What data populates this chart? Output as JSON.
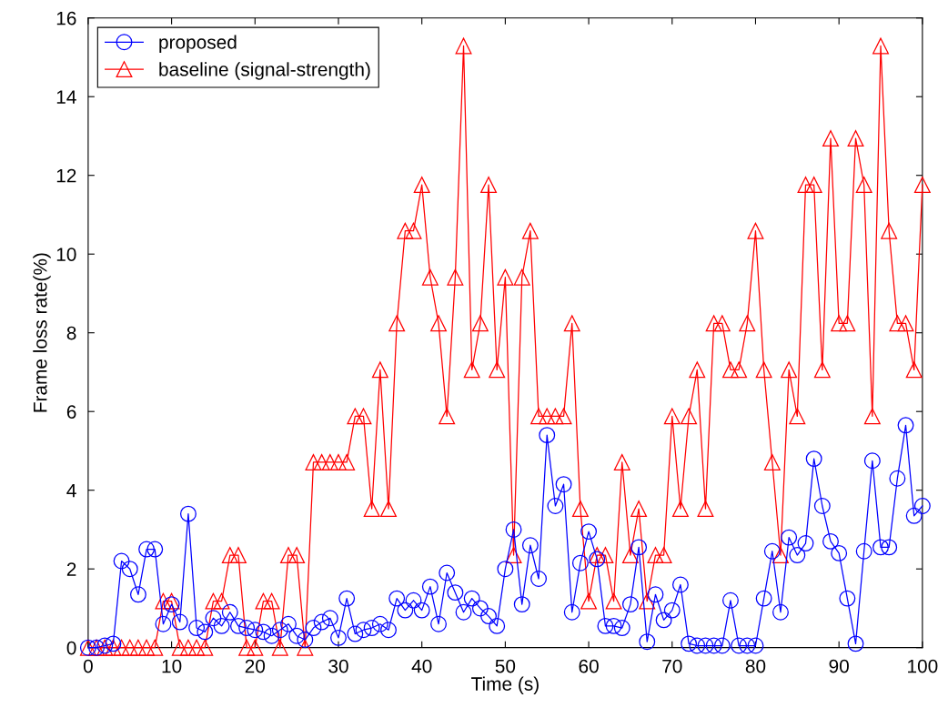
{
  "chart_data": {
    "type": "line",
    "xlabel": "Time (s)",
    "ylabel": "Frame loss rate(%)",
    "x": [
      0,
      1,
      2,
      3,
      4,
      5,
      6,
      7,
      8,
      9,
      10,
      11,
      12,
      13,
      14,
      15,
      16,
      17,
      18,
      19,
      20,
      21,
      22,
      23,
      24,
      25,
      26,
      27,
      28,
      29,
      30,
      31,
      32,
      33,
      34,
      35,
      36,
      37,
      38,
      39,
      40,
      41,
      42,
      43,
      44,
      45,
      46,
      47,
      48,
      49,
      50,
      51,
      52,
      53,
      54,
      55,
      56,
      57,
      58,
      59,
      60,
      61,
      62,
      63,
      64,
      65,
      66,
      67,
      68,
      69,
      70,
      71,
      72,
      73,
      74,
      75,
      76,
      77,
      78,
      79,
      80,
      81,
      82,
      83,
      84,
      85,
      86,
      87,
      88,
      89,
      90,
      91,
      92,
      93,
      94,
      95,
      96,
      97,
      98,
      99,
      100
    ],
    "xlim": [
      0,
      100
    ],
    "xticks": [
      0,
      10,
      20,
      30,
      40,
      50,
      60,
      70,
      80,
      90,
      100
    ],
    "ylim": [
      0,
      16
    ],
    "yticks": [
      0,
      2,
      4,
      6,
      8,
      10,
      12,
      14,
      16
    ],
    "grid": false,
    "legend": "top left",
    "line_style": "solid",
    "series": [
      {
        "name": "proposed",
        "color": "#0000ff",
        "marker": "circle",
        "values": [
          0,
          0,
          0.05,
          0.1,
          2.2,
          2.0,
          1.35,
          2.5,
          2.5,
          0.6,
          1.1,
          0.65,
          3.4,
          0.5,
          0.4,
          0.75,
          0.55,
          0.9,
          0.55,
          0.5,
          0.45,
          0.4,
          0.3,
          0.45,
          0.6,
          0.3,
          0.2,
          0.5,
          0.65,
          0.75,
          0.25,
          1.25,
          0.35,
          0.45,
          0.5,
          0.6,
          0.45,
          1.25,
          0.95,
          1.2,
          0.95,
          1.55,
          0.6,
          1.9,
          1.4,
          0.9,
          1.25,
          1.0,
          0.8,
          0.55,
          2.0,
          3.0,
          1.1,
          2.6,
          1.75,
          5.4,
          3.6,
          4.15,
          0.9,
          2.15,
          2.95,
          2.25,
          0.55,
          0.55,
          0.5,
          1.1,
          2.55,
          0.15,
          1.35,
          0.7,
          0.95,
          1.6,
          0.1,
          0.05,
          0.05,
          0.05,
          0.05,
          1.2,
          0.05,
          0.05,
          0.05,
          1.25,
          2.45,
          0.9,
          2.8,
          2.35,
          2.65,
          4.8,
          3.6,
          2.7,
          2.4,
          1.25,
          0.1,
          2.45,
          4.75,
          2.55,
          2.55,
          4.3,
          5.65,
          3.35,
          3.6
        ]
      },
      {
        "name": "baseline (signal-strength)",
        "color": "#ff0000",
        "marker": "triangle",
        "values": [
          0,
          0,
          0,
          0,
          0,
          0,
          0,
          0,
          0,
          1.18,
          1.18,
          0,
          0,
          0,
          0,
          1.18,
          1.18,
          2.35,
          2.35,
          0,
          0,
          1.18,
          1.18,
          0,
          2.35,
          2.35,
          0,
          4.71,
          4.71,
          4.71,
          4.71,
          4.71,
          5.88,
          5.88,
          3.53,
          7.06,
          3.53,
          8.24,
          10.59,
          10.59,
          11.76,
          9.41,
          8.24,
          5.88,
          9.41,
          15.29,
          7.06,
          8.24,
          11.76,
          7.06,
          9.41,
          2.35,
          9.41,
          10.59,
          5.88,
          5.88,
          5.88,
          5.88,
          8.24,
          3.53,
          1.18,
          2.35,
          2.35,
          1.18,
          4.71,
          2.35,
          3.53,
          1.18,
          2.35,
          2.35,
          5.88,
          3.53,
          5.88,
          7.06,
          3.53,
          8.24,
          8.24,
          7.06,
          7.06,
          8.24,
          10.59,
          7.06,
          4.71,
          2.35,
          7.06,
          5.88,
          11.76,
          11.76,
          7.06,
          12.94,
          8.24,
          8.24,
          12.94,
          11.76,
          5.88,
          15.29,
          10.59,
          8.24,
          8.24,
          7.06,
          11.76
        ]
      }
    ]
  }
}
